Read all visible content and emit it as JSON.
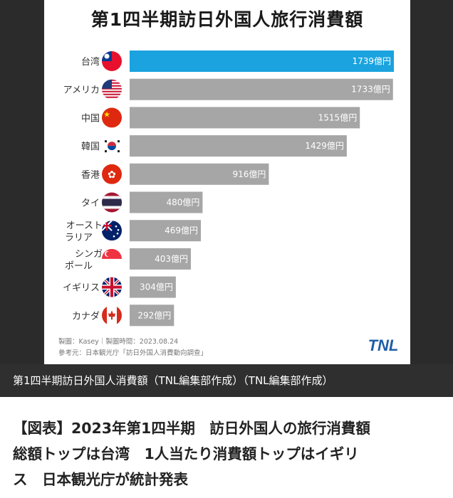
{
  "chart_data": {
    "type": "bar",
    "orientation": "horizontal",
    "title": "第1四半期訪日外国人旅行消費額",
    "categories": [
      "台湾",
      "アメリカ",
      "中国",
      "韓国",
      "香港",
      "タイ",
      "オースト|ラリア",
      "シンガ|ポール",
      "イギリス",
      "カナダ"
    ],
    "flags": [
      "taiwan-flag-icon",
      "usa-flag-icon",
      "china-flag-icon",
      "korea-flag-icon",
      "hongkong-flag-icon",
      "thailand-flag-icon",
      "australia-flag-icon",
      "singapore-flag-icon",
      "uk-flag-icon",
      "canada-flag-icon"
    ],
    "values": [
      1739,
      1733,
      1515,
      1429,
      916,
      480,
      469,
      403,
      304,
      292
    ],
    "value_unit": "億円",
    "highlight_index": 0,
    "highlight_color": "#1aa3df",
    "bar_color": "#a6a6a6",
    "xlim": [
      0,
      1739
    ]
  },
  "footer": {
    "line1": "製圖：Kasey｜製圖時間：2023.08.24",
    "line2": "參考元：日本観光庁「訪日外国人消費動向調查」",
    "logo": "TNL"
  },
  "caption": "第1四半期訪日外国人消費額（TNL編集部作成）（TNL編集部作成）",
  "headline": [
    "【図表】2023年第1四半期　訪日外国人の旅行消費額",
    "総額トップは台湾　1人当たり消費額トップはイギリ",
    "ス　日本観光庁が統計発表"
  ]
}
